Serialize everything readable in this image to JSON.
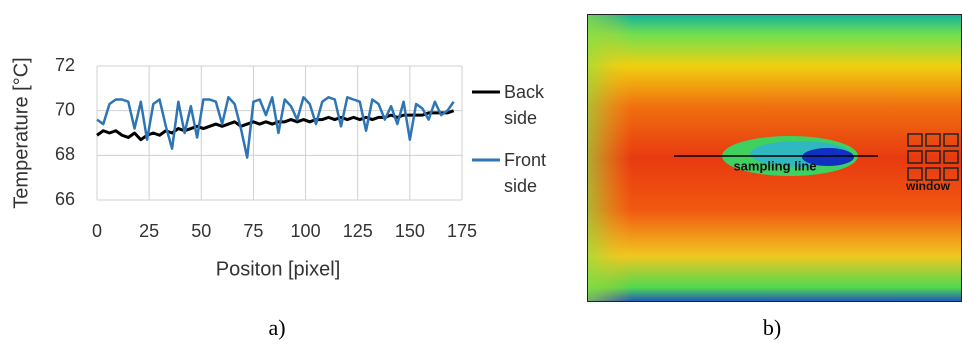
{
  "chart_data": {
    "type": "line",
    "xlabel": "Positon [pixel]",
    "ylabel": "Temperature [°C]",
    "x": [
      0,
      3,
      6,
      9,
      12,
      15,
      18,
      21,
      24,
      27,
      30,
      33,
      36,
      39,
      42,
      45,
      48,
      51,
      54,
      57,
      60,
      63,
      66,
      69,
      72,
      75,
      78,
      81,
      84,
      87,
      90,
      93,
      96,
      99,
      102,
      105,
      108,
      111,
      114,
      117,
      120,
      123,
      126,
      129,
      132,
      135,
      138,
      141,
      144,
      147,
      150,
      153,
      156,
      159,
      162,
      165,
      168,
      171
    ],
    "series": [
      {
        "name": "Back side",
        "color": "#000000",
        "values": [
          68.9,
          69.1,
          69.0,
          69.1,
          68.9,
          68.8,
          69.0,
          68.7,
          68.9,
          69.0,
          68.9,
          69.1,
          69.0,
          69.2,
          69.1,
          69.2,
          69.3,
          69.2,
          69.3,
          69.4,
          69.3,
          69.4,
          69.5,
          69.3,
          69.4,
          69.5,
          69.4,
          69.5,
          69.4,
          69.5,
          69.5,
          69.6,
          69.5,
          69.6,
          69.5,
          69.6,
          69.6,
          69.7,
          69.6,
          69.7,
          69.6,
          69.7,
          69.6,
          69.7,
          69.6,
          69.7,
          69.7,
          69.8,
          69.7,
          69.8,
          69.8,
          69.8,
          69.8,
          69.9,
          69.9,
          69.9,
          69.9,
          70.0
        ]
      },
      {
        "name": "Front side",
        "color": "#2e75b6",
        "values": [
          69.6,
          69.4,
          70.3,
          70.5,
          70.5,
          70.4,
          69.2,
          70.4,
          68.7,
          70.3,
          70.5,
          69.3,
          68.3,
          70.4,
          69.0,
          70.2,
          68.8,
          70.5,
          70.5,
          70.4,
          69.4,
          70.6,
          70.3,
          69.2,
          67.9,
          70.4,
          70.5,
          69.8,
          70.6,
          69.0,
          70.5,
          70.2,
          69.6,
          70.6,
          70.3,
          69.4,
          70.4,
          70.6,
          70.5,
          69.3,
          70.6,
          70.5,
          70.4,
          69.1,
          70.5,
          70.3,
          69.6,
          70.2,
          69.4,
          70.4,
          68.7,
          70.3,
          70.1,
          69.6,
          70.4,
          69.8,
          70.0,
          70.4
        ]
      }
    ],
    "xlim": [
      0,
      175
    ],
    "xticks": [
      0,
      25,
      50,
      75,
      100,
      125,
      150,
      175
    ],
    "ylim": [
      66,
      72
    ],
    "yticks": [
      66,
      68,
      70,
      72
    ],
    "grid": true
  },
  "figure": {
    "caption_a": "a)",
    "caption_b": "b)",
    "sampling_label": "sampling line",
    "window_label": "window"
  }
}
